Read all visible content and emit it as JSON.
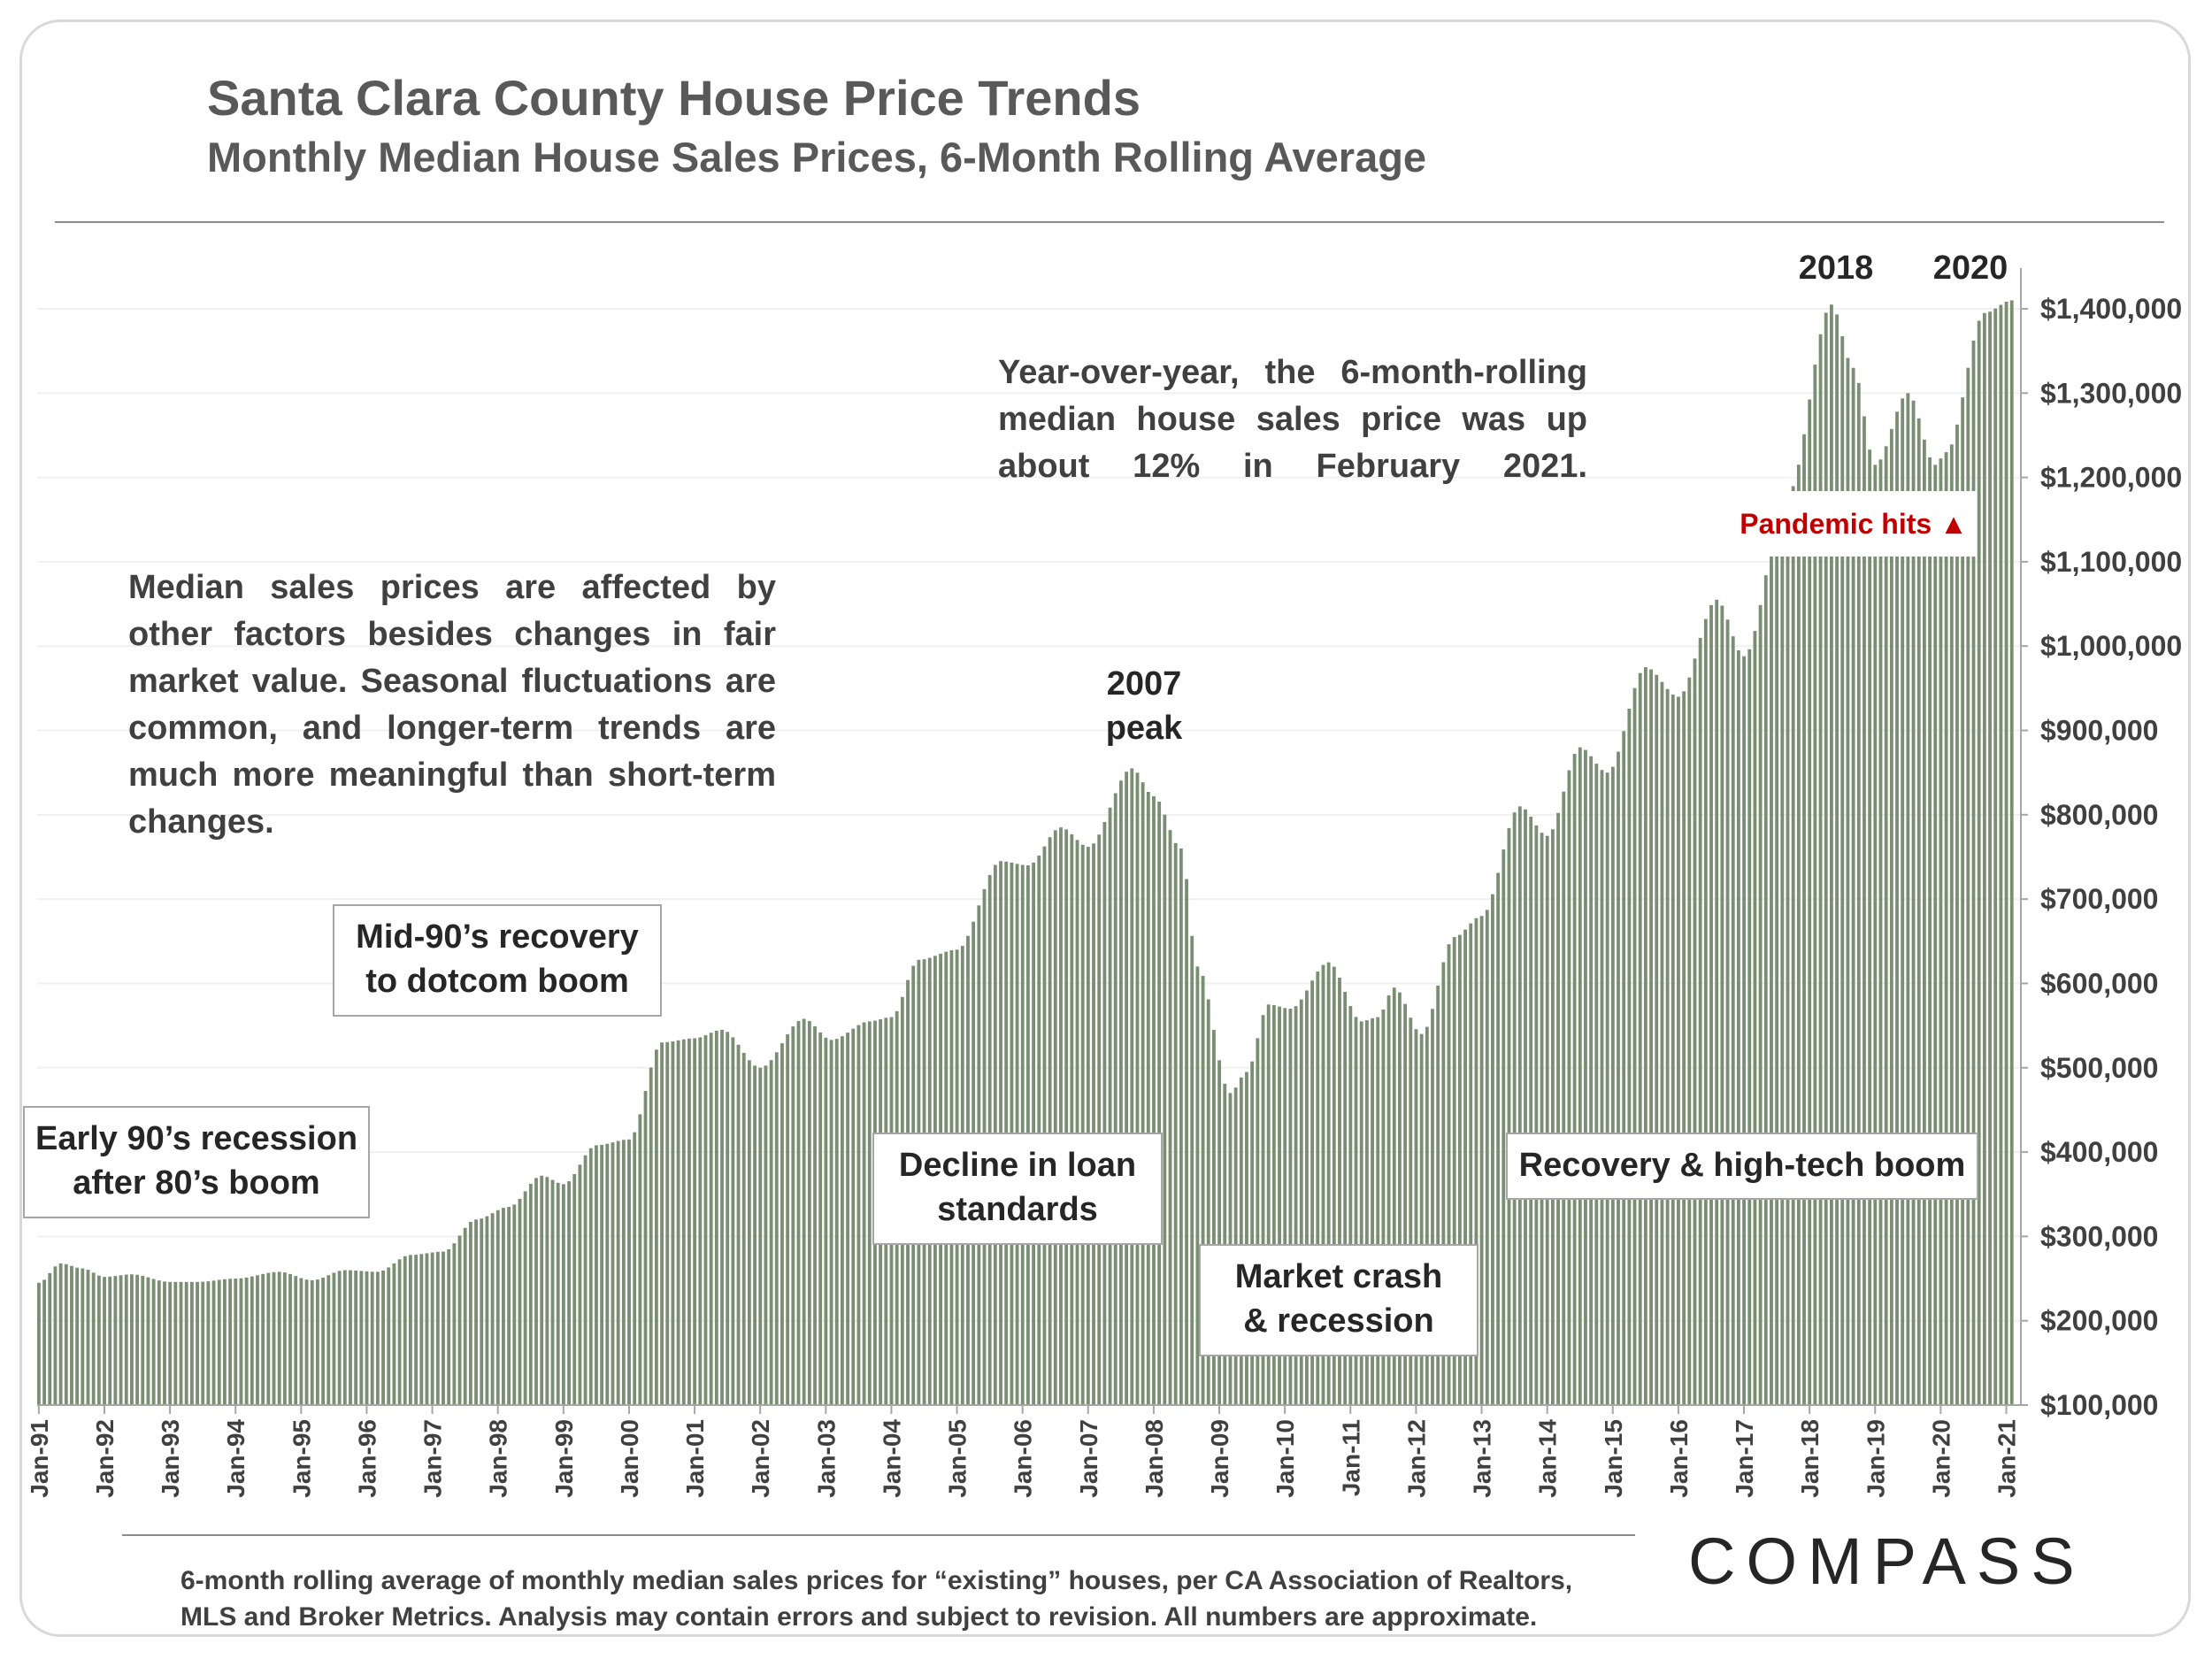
{
  "header": {
    "title": "Santa Clara County House Price Trends",
    "subtitle": "Monthly Median House Sales Prices, 6-Month Rolling Average"
  },
  "annotations": {
    "yoy_note": "Year-over-year, the 6-month-rolling median house sales price was up about 12% in February 2021.",
    "median_note": "Median sales prices are affected by other factors besides changes in fair market value. Seasonal fluctuations are common, and longer-term trends are much more meaningful than short-term changes.",
    "early90s": [
      "Early 90’s recession",
      "after 80’s boom"
    ],
    "mid90s": [
      "Mid-90’s recovery",
      "to dotcom boom"
    ],
    "decline": [
      "Decline in loan",
      "standards"
    ],
    "crash": [
      "Market crash",
      "& recession"
    ],
    "recovery": "Recovery & high-tech boom",
    "peak2007": [
      "2007",
      "peak"
    ],
    "peak2018": "2018",
    "peak2020": "2020",
    "pandemic": "Pandemic hits ▲"
  },
  "footer": {
    "note_line1": "6-month rolling average of monthly median sales prices for “existing” houses, per CA Association of Realtors,",
    "note_line2": "MLS and Broker Metrics.  Analysis may contain errors and subject to revision. All numbers are approximate.",
    "logo": "COMPASS"
  },
  "colors": {
    "bars": "#7a8e73",
    "text": "#404040",
    "accent": "#c00000",
    "grid": "#f0f0f0"
  },
  "chart_data": {
    "type": "bar",
    "title": "Santa Clara County House Price Trends",
    "subtitle": "Monthly Median House Sales Prices, 6-Month Rolling Average",
    "xlabel": "",
    "ylabel": "",
    "ylim": [
      100000,
      1400000
    ],
    "y_ticks": [
      "$100,000",
      "$200,000",
      "$300,000",
      "$400,000",
      "$500,000",
      "$600,000",
      "$700,000",
      "$800,000",
      "$900,000",
      "$1,000,000",
      "$1,100,000",
      "$1,200,000",
      "$1,300,000",
      "$1,400,000"
    ],
    "y_axis_side": "right",
    "x_ticks": [
      "Jan-91",
      "Jan-92",
      "Jan-93",
      "Jan-94",
      "Jan-95",
      "Jan-96",
      "Jan-97",
      "Jan-98",
      "Jan-99",
      "Jan-00",
      "Jan-01",
      "Jan-02",
      "Jan-03",
      "Jan-04",
      "Jan-05",
      "Jan-06",
      "Jan-07",
      "Jan-08",
      "Jan-09",
      "Jan-10",
      "Jan-11",
      "Jan-12",
      "Jan-13",
      "Jan-14",
      "Jan-15",
      "Jan-16",
      "Jan-17",
      "Jan-18",
      "Jan-19",
      "Jan-20",
      "Jan-21"
    ],
    "grid": true,
    "series": [
      {
        "name": "",
        "start": "Jan-91",
        "frequency": "monthly",
        "keyframes": [
          [
            "1991-01",
            245000
          ],
          [
            "1991-05",
            268000
          ],
          [
            "1991-09",
            262000
          ],
          [
            "1992-01",
            252000
          ],
          [
            "1992-06",
            255000
          ],
          [
            "1993-01",
            246000
          ],
          [
            "1993-06",
            246000
          ],
          [
            "1994-01",
            250000
          ],
          [
            "1994-09",
            258000
          ],
          [
            "1995-03",
            248000
          ],
          [
            "1995-09",
            260000
          ],
          [
            "1996-03",
            258000
          ],
          [
            "1996-09",
            278000
          ],
          [
            "1997-03",
            282000
          ],
          [
            "1997-09",
            320000
          ],
          [
            "1998-03",
            335000
          ],
          [
            "1998-09",
            372000
          ],
          [
            "1999-01",
            362000
          ],
          [
            "1999-07",
            408000
          ],
          [
            "2000-01",
            415000
          ],
          [
            "2000-07",
            530000
          ],
          [
            "2001-01",
            535000
          ],
          [
            "2001-06",
            545000
          ],
          [
            "2002-01",
            500000
          ],
          [
            "2002-09",
            558000
          ],
          [
            "2003-02",
            533000
          ],
          [
            "2003-09",
            555000
          ],
          [
            "2004-01",
            560000
          ],
          [
            "2004-06",
            628000
          ],
          [
            "2005-01",
            640000
          ],
          [
            "2005-09",
            745000
          ],
          [
            "2006-02",
            740000
          ],
          [
            "2006-08",
            785000
          ],
          [
            "2007-01",
            762000
          ],
          [
            "2007-09",
            855000
          ],
          [
            "2008-01",
            822000
          ],
          [
            "2008-06",
            760000
          ],
          [
            "2008-09",
            620000
          ],
          [
            "2009-03",
            470000
          ],
          [
            "2009-06",
            495000
          ],
          [
            "2009-10",
            575000
          ],
          [
            "2010-02",
            570000
          ],
          [
            "2010-09",
            625000
          ],
          [
            "2011-03",
            555000
          ],
          [
            "2011-06",
            560000
          ],
          [
            "2011-09",
            595000
          ],
          [
            "2012-02",
            540000
          ],
          [
            "2012-08",
            655000
          ],
          [
            "2013-01",
            680000
          ],
          [
            "2013-08",
            810000
          ],
          [
            "2014-01",
            775000
          ],
          [
            "2014-07",
            880000
          ],
          [
            "2014-12",
            850000
          ],
          [
            "2015-07",
            975000
          ],
          [
            "2016-01",
            940000
          ],
          [
            "2016-08",
            1055000
          ],
          [
            "2017-01",
            988000
          ],
          [
            "2017-09",
            1180000
          ],
          [
            "2018-05",
            1405000
          ],
          [
            "2018-09",
            1330000
          ],
          [
            "2019-01",
            1215000
          ],
          [
            "2019-07",
            1300000
          ],
          [
            "2019-12",
            1215000
          ],
          [
            "2020-02",
            1230000
          ],
          [
            "2020-09",
            1395000
          ],
          [
            "2021-02",
            1410000
          ]
        ]
      }
    ]
  }
}
